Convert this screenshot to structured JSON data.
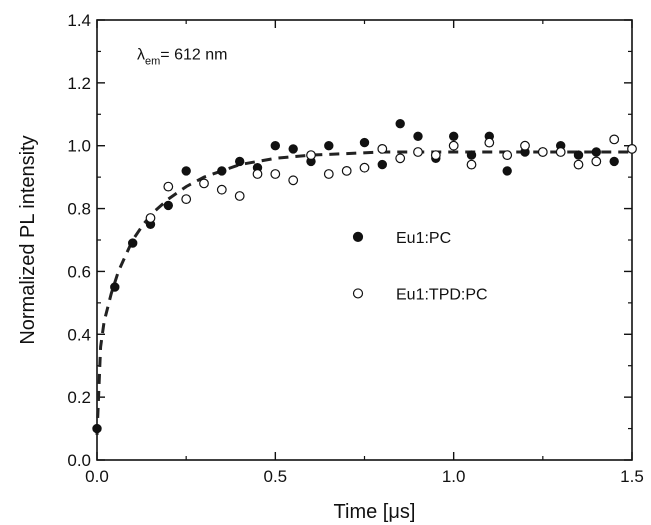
{
  "chart_data": {
    "type": "scatter",
    "xlabel": "Time [μs]",
    "ylabel": "Normalized PL intensity",
    "xlim": [
      0,
      1.5
    ],
    "ylim": [
      0,
      1.4
    ],
    "x_ticks": [
      0.0,
      0.5,
      1.0,
      1.5
    ],
    "x_tick_labels": [
      "0.0",
      "0.5",
      "1.0",
      "1.5"
    ],
    "y_ticks": [
      0.0,
      0.2,
      0.4,
      0.6,
      0.8,
      1.0,
      1.2,
      1.4
    ],
    "y_tick_labels": [
      "0.0",
      "0.2",
      "0.4",
      "0.6",
      "0.8",
      "1.0",
      "1.2",
      "1.4"
    ],
    "grid": false,
    "legend_position": "center-right",
    "annotation": {
      "symbol": "λ",
      "subscript": "em",
      "text": "= 612 nm"
    },
    "series": [
      {
        "name": "Eu1:PC",
        "marker": "filled-circle",
        "color": "#111111",
        "x": [
          0.0,
          0.05,
          0.1,
          0.15,
          0.2,
          0.25,
          0.35,
          0.4,
          0.45,
          0.5,
          0.55,
          0.6,
          0.65,
          0.75,
          0.8,
          0.85,
          0.9,
          0.95,
          1.0,
          1.05,
          1.1,
          1.15,
          1.2,
          1.25,
          1.3,
          1.35,
          1.4,
          1.45
        ],
        "y": [
          0.1,
          0.55,
          0.69,
          0.75,
          0.81,
          0.92,
          0.92,
          0.95,
          0.93,
          1.0,
          0.99,
          0.95,
          1.0,
          1.01,
          0.94,
          1.07,
          1.03,
          0.96,
          1.03,
          0.97,
          1.03,
          0.92,
          0.98,
          0.98,
          1.0,
          0.97,
          0.98,
          0.95
        ]
      },
      {
        "name": "Eu1:TPD:PC",
        "marker": "open-circle",
        "color": "#111111",
        "x": [
          0.15,
          0.2,
          0.25,
          0.3,
          0.35,
          0.4,
          0.45,
          0.5,
          0.55,
          0.6,
          0.65,
          0.7,
          0.75,
          0.8,
          0.85,
          0.9,
          0.95,
          1.0,
          1.05,
          1.1,
          1.15,
          1.2,
          1.25,
          1.3,
          1.35,
          1.4,
          1.45,
          1.5
        ],
        "y": [
          0.77,
          0.87,
          0.83,
          0.88,
          0.86,
          0.84,
          0.91,
          0.91,
          0.89,
          0.97,
          0.91,
          0.92,
          0.93,
          0.99,
          0.96,
          0.98,
          0.97,
          1.0,
          0.94,
          1.01,
          0.97,
          1.0,
          0.98,
          0.98,
          0.94,
          0.95,
          1.02,
          0.99
        ]
      }
    ],
    "fit_curve": {
      "style": "dashed",
      "model": "1 - 0.9*exp(-t/0.15) biexponential-like rise",
      "x": [
        0.0,
        0.01,
        0.02,
        0.04,
        0.06,
        0.08,
        0.1,
        0.13,
        0.16,
        0.2,
        0.25,
        0.3,
        0.35,
        0.4,
        0.5,
        0.6,
        0.7,
        0.8,
        0.9,
        1.0,
        1.1,
        1.2,
        1.3,
        1.4,
        1.5
      ],
      "y": [
        0.08,
        0.36,
        0.44,
        0.53,
        0.6,
        0.65,
        0.7,
        0.75,
        0.79,
        0.83,
        0.87,
        0.9,
        0.92,
        0.94,
        0.96,
        0.97,
        0.975,
        0.98,
        0.98,
        0.98,
        0.98,
        0.98,
        0.98,
        0.98,
        0.98
      ]
    }
  }
}
